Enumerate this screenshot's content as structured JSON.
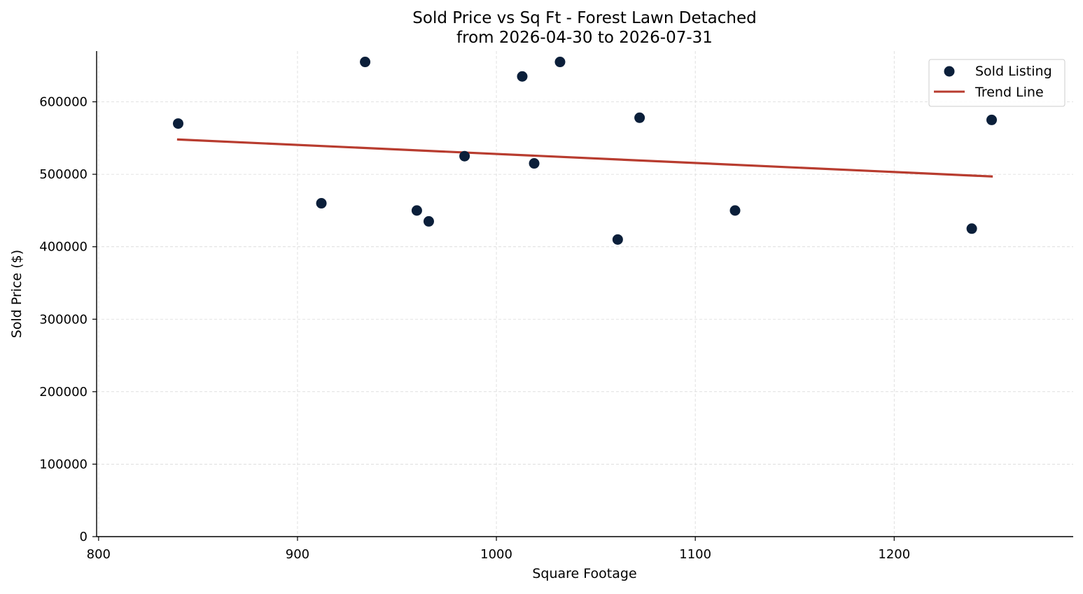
{
  "chart_data": {
    "type": "scatter",
    "title": "Sold Price vs Sq Ft - Forest Lawn Detached",
    "subtitle": "from 2026-04-30 to 2026-07-31",
    "xlabel": "Square Footage",
    "ylabel": "Sold Price ($)",
    "xlim": [
      799,
      1290
    ],
    "ylim": [
      0,
      670000
    ],
    "x_ticks": [
      "800",
      "900",
      "1000",
      "1100",
      "1200"
    ],
    "y_ticks": [
      "0",
      "100000",
      "200000",
      "300000",
      "400000",
      "500000",
      "600000"
    ],
    "grid": true,
    "legend_position": "top-right",
    "series": [
      {
        "name": "Sold Listing",
        "kind": "scatter",
        "color": "#0b1f3a",
        "points": [
          {
            "x": 840,
            "y": 570000
          },
          {
            "x": 912,
            "y": 460000
          },
          {
            "x": 934,
            "y": 655000
          },
          {
            "x": 960,
            "y": 450000
          },
          {
            "x": 966,
            "y": 435000
          },
          {
            "x": 984,
            "y": 525000
          },
          {
            "x": 1013,
            "y": 635000
          },
          {
            "x": 1019,
            "y": 515000
          },
          {
            "x": 1032,
            "y": 655000
          },
          {
            "x": 1061,
            "y": 410000
          },
          {
            "x": 1072,
            "y": 578000
          },
          {
            "x": 1120,
            "y": 450000
          },
          {
            "x": 1239,
            "y": 425000
          },
          {
            "x": 1249,
            "y": 575000
          }
        ]
      },
      {
        "name": "Trend Line",
        "kind": "line",
        "color": "#b83c2f",
        "points": [
          {
            "x": 840,
            "y": 548000
          },
          {
            "x": 1249,
            "y": 497000
          }
        ]
      }
    ]
  }
}
